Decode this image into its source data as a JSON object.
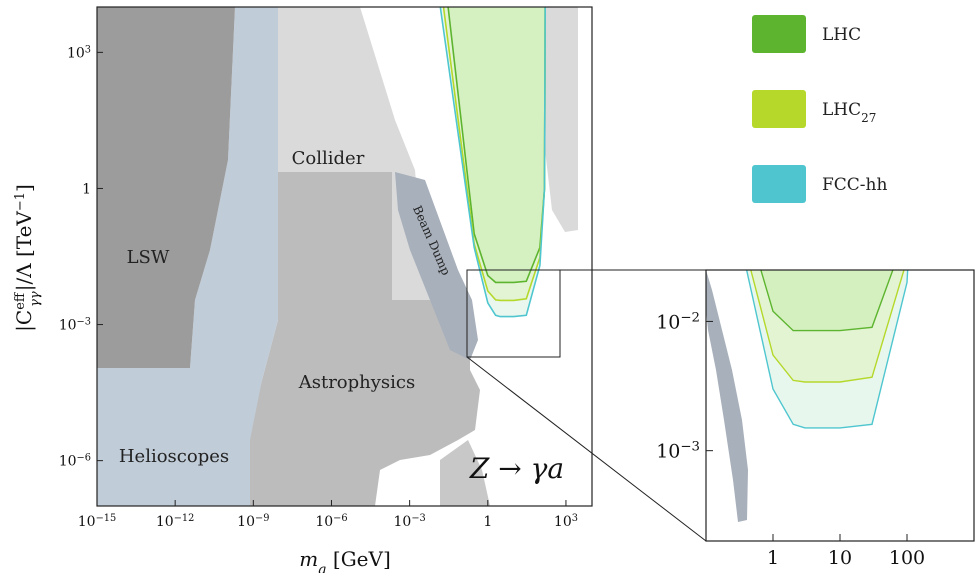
{
  "chart_data": [
    {
      "type": "area",
      "panel": "main",
      "xlabel_var": "m",
      "xlabel_sub": "a",
      "xlabel_unit": " [GeV]",
      "ylabel_text": "|C",
      "ylabel_sup": "eff",
      "ylabel_sub": "γγ",
      "ylabel_rest": "|/Λ [TeV",
      "ylabel_unit_sup": "−1",
      "ylabel_close": "]",
      "x_scale": "log",
      "y_scale": "log",
      "xlim": [
        1e-15,
        10000.0
      ],
      "ylim": [
        1e-07,
        10000.0
      ],
      "x_ticks": [
        {
          "base": "10",
          "exp": "−15",
          "value": 1e-15
        },
        {
          "base": "10",
          "exp": "−12",
          "value": 1e-12
        },
        {
          "base": "10",
          "exp": "−9",
          "value": 1e-09
        },
        {
          "base": "10",
          "exp": "−6",
          "value": 1e-06
        },
        {
          "base": "10",
          "exp": "−3",
          "value": 0.001
        },
        {
          "base": "1",
          "exp": "",
          "value": 1
        },
        {
          "base": "10",
          "exp": "3",
          "value": 1000.0
        }
      ],
      "y_ticks": [
        {
          "base": "10",
          "exp": "3",
          "value": 1000.0
        },
        {
          "base": "1",
          "exp": "",
          "value": 1
        },
        {
          "base": "10",
          "exp": "−3",
          "value": 0.001
        },
        {
          "base": "10",
          "exp": "−6",
          "value": 1e-06
        }
      ],
      "region_labels": {
        "lsw": "LSW",
        "collider": "Collider",
        "beam_dump": "Beam Dump",
        "astrophysics": "Astrophysics",
        "helioscopes": "Helioscopes"
      },
      "process_label": "Z → γa",
      "series": [
        {
          "name": "LHC",
          "color": "#5db52f",
          "x": [
            0.03,
            0.3,
            1,
            2,
            3,
            10,
            30,
            100,
            150,
            160
          ],
          "y": [
            10000.0,
            0.1,
            0.012,
            0.0085,
            0.0085,
            0.0085,
            0.009,
            0.05,
            1,
            10000.0
          ]
        },
        {
          "name": "LHC",
          "subscript": "27",
          "color": "#b5d82a",
          "x": [
            0.02,
            0.3,
            1,
            2,
            3,
            10,
            30,
            100,
            150,
            160
          ],
          "y": [
            10000.0,
            0.06,
            0.0055,
            0.0035,
            0.0034,
            0.0034,
            0.0037,
            0.03,
            1,
            10000.0
          ]
        },
        {
          "name": "FCC-hh",
          "color": "#4fc6cf",
          "x": [
            0.015,
            0.3,
            1,
            2,
            3,
            10,
            30,
            100,
            150,
            160
          ],
          "y": [
            10000.0,
            0.05,
            0.003,
            0.0016,
            0.0015,
            0.0015,
            0.0016,
            0.02,
            1,
            10000.0
          ]
        }
      ]
    },
    {
      "type": "area",
      "panel": "zoom",
      "x_scale": "log",
      "y_scale": "log",
      "xlim": [
        0.1,
        1000
      ],
      "ylim": [
        0.0002,
        0.025
      ],
      "x_ticks": [
        {
          "base": "1",
          "value": 1
        },
        {
          "base": "10",
          "value": 10
        },
        {
          "base": "100",
          "value": 100
        }
      ],
      "y_ticks": [
        {
          "base": "10",
          "exp": "−2",
          "value": 0.01
        },
        {
          "base": "10",
          "exp": "−3",
          "value": 0.001
        }
      ]
    }
  ],
  "colors": {
    "lhc": "#5db52f",
    "lhc_fill": "#d2efbd",
    "lhc27": "#b5d82a",
    "fcc": "#4fc6cf",
    "fcc_fill": "#e6f6ec",
    "helioscopes": "#c0ccd8",
    "lsw": "#9c9c9c",
    "astrophysics": "#bcbcbc",
    "collider": "#dadada",
    "beam_dump": "#a8b0bb"
  }
}
